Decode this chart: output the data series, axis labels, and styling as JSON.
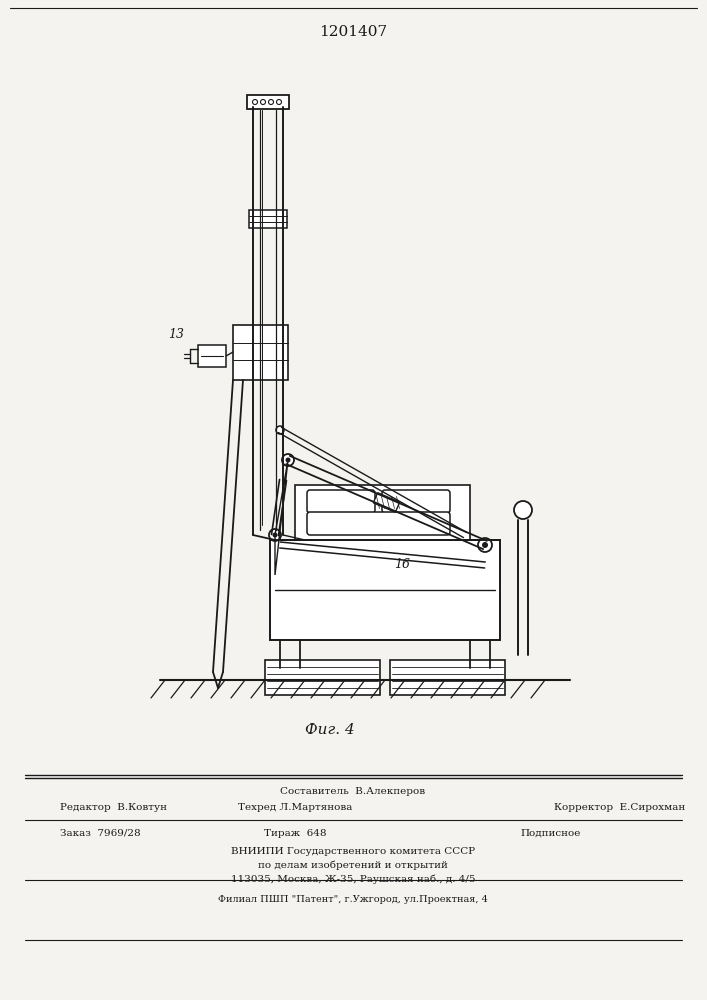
{
  "title": "1201407",
  "fig_label": "Фиг. 4",
  "label_13": "13",
  "label_16": "16",
  "bg_color": "#f5f3f0",
  "line_color": "#1a1a1a",
  "footer_line1": "Составитель  В.Алекперов",
  "footer_line2_left": "Редактор  В.Ковтун",
  "footer_line2_mid": "Техред Л.Мартянова",
  "footer_line2_right": "Корректор  Е.Сирохман",
  "footer_line3_left": "Заказ  7969/28",
  "footer_line3_mid": "Тираж  648",
  "footer_line3_right": "Подписное",
  "footer_line4": "ВНИИПИ Государственного комитета СССР",
  "footer_line5": "по делам изобретений и открытий",
  "footer_line6": "113035, Москва, Ж-35, Раушская наб., д. 4/5",
  "footer_line7": "Филиал ПШП \"Патент\", г.Ужгород, ул.Проектная, 4"
}
